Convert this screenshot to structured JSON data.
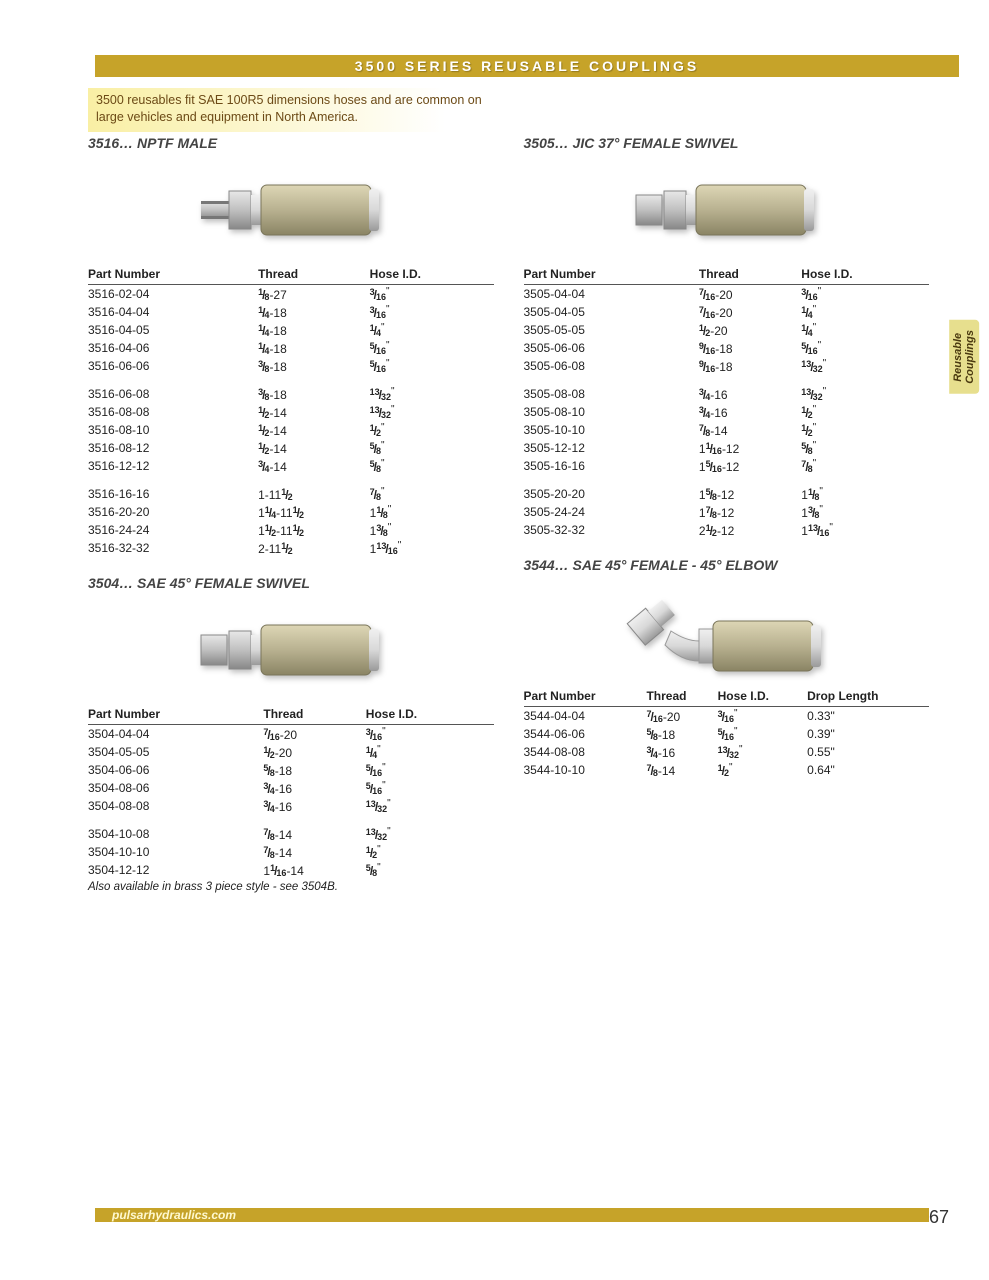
{
  "header": "3500 SERIES REUSABLE COUPLINGS",
  "intro": "3500 reusables fit SAE 100R5 dimensions hoses and are common on large vehicles and equipment in North America.",
  "sideTab": {
    "l1": "Reusable",
    "l2": "Couplings"
  },
  "footer": {
    "url": "pulsarhydraulics.com",
    "page": "67"
  },
  "cols": {
    "partNumber": "Part Number",
    "thread": "Thread",
    "hoseId": "Hose I.D.",
    "dropLength": "Drop Length"
  },
  "sections": {
    "s3516": {
      "title": "3516…  NPTF MALE",
      "groups": [
        [
          {
            "pn": "3516-02-04",
            "th": [
              "1",
              "8",
              "-27"
            ],
            "hose": [
              "3",
              "16"
            ]
          },
          {
            "pn": "3516-04-04",
            "th": [
              "1",
              "4",
              "-18"
            ],
            "hose": [
              "3",
              "16"
            ]
          },
          {
            "pn": "3516-04-05",
            "th": [
              "1",
              "4",
              "-18"
            ],
            "hose": [
              "1",
              "4"
            ]
          },
          {
            "pn": "3516-04-06",
            "th": [
              "1",
              "4",
              "-18"
            ],
            "hose": [
              "5",
              "16"
            ]
          },
          {
            "pn": "3516-06-06",
            "th": [
              "3",
              "8",
              "-18"
            ],
            "hose": [
              "5",
              "16"
            ]
          }
        ],
        [
          {
            "pn": "3516-06-08",
            "th": [
              "3",
              "8",
              "-18"
            ],
            "hose": [
              "13",
              "32"
            ]
          },
          {
            "pn": "3516-08-08",
            "th": [
              "1",
              "2",
              "-14"
            ],
            "hose": [
              "13",
              "32"
            ]
          },
          {
            "pn": "3516-08-10",
            "th": [
              "1",
              "2",
              "-14"
            ],
            "hose": [
              "1",
              "2"
            ]
          },
          {
            "pn": "3516-08-12",
            "th": [
              "1",
              "2",
              "-14"
            ],
            "hose": [
              "5",
              "8"
            ]
          },
          {
            "pn": "3516-12-12",
            "th": [
              "3",
              "4",
              "-14"
            ],
            "hose": [
              "5",
              "8"
            ]
          }
        ],
        [
          {
            "pn": "3516-16-16",
            "thPlain": "1-11",
            "thFrac": [
              "1",
              "2"
            ],
            "hose": [
              "7",
              "8"
            ]
          },
          {
            "pn": "3516-20-20",
            "thW": "1",
            "thFracA": [
              "1",
              "4"
            ],
            "thMid": "-11",
            "thFracB": [
              "1",
              "2"
            ],
            "hoseW": "1",
            "hose": [
              "1",
              "8"
            ]
          },
          {
            "pn": "3516-24-24",
            "thW": "1",
            "thFracA": [
              "1",
              "2"
            ],
            "thMid": "-11",
            "thFracB": [
              "1",
              "2"
            ],
            "hoseW": "1",
            "hose": [
              "3",
              "8"
            ]
          },
          {
            "pn": "3516-32-32",
            "thPlain": "2-11",
            "thFrac": [
              "1",
              "2"
            ],
            "hoseW": "1",
            "hose": [
              "13",
              "16"
            ]
          }
        ]
      ]
    },
    "s3504": {
      "title": "3504…  SAE 45° FEMALE SWIVEL",
      "groups": [
        [
          {
            "pn": "3504-04-04",
            "th": [
              "7",
              "16",
              "-20"
            ],
            "hose": [
              "3",
              "16"
            ]
          },
          {
            "pn": "3504-05-05",
            "th": [
              "1",
              "2",
              "-20"
            ],
            "hose": [
              "1",
              "4"
            ]
          },
          {
            "pn": "3504-06-06",
            "th": [
              "5",
              "8",
              "-18"
            ],
            "hose": [
              "5",
              "16"
            ]
          },
          {
            "pn": "3504-08-06",
            "th": [
              "3",
              "4",
              "-16"
            ],
            "hose": [
              "5",
              "16"
            ]
          },
          {
            "pn": "3504-08-08",
            "th": [
              "3",
              "4",
              "-16"
            ],
            "hose": [
              "13",
              "32"
            ]
          }
        ],
        [
          {
            "pn": "3504-10-08",
            "th": [
              "7",
              "8",
              "-14"
            ],
            "hose": [
              "13",
              "32"
            ]
          },
          {
            "pn": "3504-10-10",
            "th": [
              "7",
              "8",
              "-14"
            ],
            "hose": [
              "1",
              "2"
            ]
          },
          {
            "pn": "3504-12-12",
            "thW": "1",
            "th": [
              "1",
              "16",
              "-14"
            ],
            "hose": [
              "5",
              "8"
            ]
          }
        ]
      ],
      "note": "Also available in brass 3 piece style - see  3504B."
    },
    "s3505": {
      "title": "3505…  JIC 37° FEMALE SWIVEL",
      "groups": [
        [
          {
            "pn": "3505-04-04",
            "th": [
              "7",
              "16",
              "-20"
            ],
            "hose": [
              "3",
              "16"
            ]
          },
          {
            "pn": "3505-04-05",
            "th": [
              "7",
              "16",
              "-20"
            ],
            "hose": [
              "1",
              "4"
            ]
          },
          {
            "pn": "3505-05-05",
            "th": [
              "1",
              "2",
              "-20"
            ],
            "hose": [
              "1",
              "4"
            ]
          },
          {
            "pn": "3505-06-06",
            "th": [
              "9",
              "16",
              "-18"
            ],
            "hose": [
              "5",
              "16"
            ]
          },
          {
            "pn": "3505-06-08",
            "th": [
              "9",
              "16",
              "-18"
            ],
            "hose": [
              "13",
              "32"
            ]
          }
        ],
        [
          {
            "pn": "3505-08-08",
            "th": [
              "3",
              "4",
              "-16"
            ],
            "hose": [
              "13",
              "32"
            ]
          },
          {
            "pn": "3505-08-10",
            "th": [
              "3",
              "4",
              "-16"
            ],
            "hose": [
              "1",
              "2"
            ]
          },
          {
            "pn": "3505-10-10",
            "th": [
              "7",
              "8",
              "-14"
            ],
            "hose": [
              "1",
              "2"
            ]
          },
          {
            "pn": "3505-12-12",
            "thW": "1",
            "th": [
              "1",
              "16",
              "-12"
            ],
            "hose": [
              "5",
              "8"
            ]
          },
          {
            "pn": "3505-16-16",
            "thW": "1",
            "th": [
              "5",
              "16",
              "-12"
            ],
            "hose": [
              "7",
              "8"
            ]
          }
        ],
        [
          {
            "pn": "3505-20-20",
            "thW": "1",
            "th": [
              "5",
              "8",
              "-12"
            ],
            "hoseW": "1",
            "hose": [
              "1",
              "8"
            ]
          },
          {
            "pn": "3505-24-24",
            "thW": "1",
            "th": [
              "7",
              "8",
              "-12"
            ],
            "hoseW": "1",
            "hose": [
              "3",
              "8"
            ]
          },
          {
            "pn": "3505-32-32",
            "thW": "2",
            "th": [
              "1",
              "2",
              "-12"
            ],
            "hoseW": "1",
            "hose": [
              "13",
              "16"
            ]
          }
        ]
      ]
    },
    "s3544": {
      "title": "3544…  SAE 45° FEMALE - 45° ELBOW",
      "hasDrop": true,
      "groups": [
        [
          {
            "pn": "3544-04-04",
            "th": [
              "7",
              "16",
              "-20"
            ],
            "hose": [
              "3",
              "16"
            ],
            "drop": "0.33\""
          },
          {
            "pn": "3544-06-06",
            "th": [
              "5",
              "8",
              "-18"
            ],
            "hose": [
              "5",
              "16"
            ],
            "drop": "0.39\""
          },
          {
            "pn": "3544-08-08",
            "th": [
              "3",
              "4",
              "-16"
            ],
            "hose": [
              "13",
              "32"
            ],
            "drop": "0.55\""
          },
          {
            "pn": "3544-10-10",
            "th": [
              "7",
              "8",
              "-14"
            ],
            "hose": [
              "1",
              "2"
            ],
            "drop": "0.64\""
          }
        ]
      ]
    }
  },
  "colors": {
    "barBg": "#c6a329",
    "introBg": "#f9efa4",
    "metal1": "#d8d8d8",
    "metal2": "#9a9a9a",
    "metal3": "#b8b190"
  }
}
